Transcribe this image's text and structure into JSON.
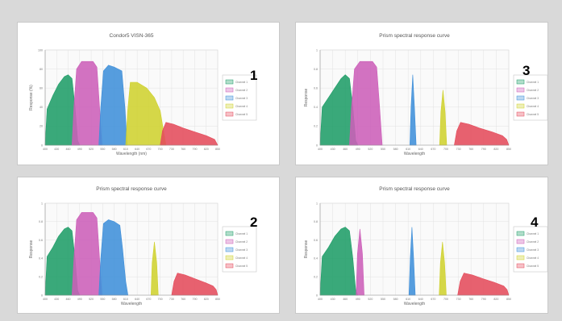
{
  "chart_data": [
    {
      "type": "area",
      "badge": "1",
      "title": "Condor5 VISN-365",
      "ylabel": "Response (%)",
      "xlabel": "Wavelength (nm)",
      "xlim": [
        400,
        850
      ],
      "ylim": [
        0,
        100
      ],
      "x_ticks": [
        400,
        430,
        460,
        490,
        520,
        550,
        580,
        610,
        640,
        670,
        700,
        730,
        760,
        790,
        820,
        850
      ],
      "y_ticks": [
        0,
        20,
        40,
        60,
        80,
        100
      ],
      "legend": [
        "Channel 1",
        "Channel 2",
        "Channel 3",
        "Channel 4",
        "Channel 5"
      ],
      "series": [
        {
          "name": "Channel 1",
          "color": "#1f9d68",
          "points": [
            [
              400,
              0
            ],
            [
              405,
              38
            ],
            [
              420,
              52
            ],
            [
              435,
              64
            ],
            [
              450,
              72
            ],
            [
              460,
              74
            ],
            [
              470,
              70
            ],
            [
              478,
              40
            ],
            [
              485,
              5
            ],
            [
              490,
              0
            ]
          ]
        },
        {
          "name": "Channel 2",
          "color": "#cc5fb8",
          "points": [
            [
              470,
              0
            ],
            [
              475,
              40
            ],
            [
              482,
              80
            ],
            [
              495,
              88
            ],
            [
              510,
              88
            ],
            [
              525,
              88
            ],
            [
              535,
              82
            ],
            [
              542,
              40
            ],
            [
              548,
              0
            ]
          ]
        },
        {
          "name": "Channel 3",
          "color": "#3f8fd9",
          "points": [
            [
              540,
              0
            ],
            [
              545,
              40
            ],
            [
              552,
              78
            ],
            [
              565,
              84
            ],
            [
              580,
              82
            ],
            [
              600,
              78
            ],
            [
              608,
              40
            ],
            [
              614,
              0
            ]
          ]
        },
        {
          "name": "Channel 4",
          "color": "#cfd12f",
          "points": [
            [
              610,
              0
            ],
            [
              615,
              35
            ],
            [
              622,
              66
            ],
            [
              640,
              66
            ],
            [
              665,
              60
            ],
            [
              685,
              50
            ],
            [
              700,
              36
            ],
            [
              710,
              12
            ],
            [
              715,
              0
            ]
          ]
        },
        {
          "name": "Channel 5",
          "color": "#e44b5b",
          "points": [
            [
              700,
              0
            ],
            [
              706,
              15
            ],
            [
              715,
              24
            ],
            [
              735,
              22
            ],
            [
              760,
              18
            ],
            [
              790,
              14
            ],
            [
              820,
              10
            ],
            [
              842,
              6
            ],
            [
              850,
              0
            ]
          ]
        }
      ]
    },
    {
      "type": "area",
      "badge": "3",
      "title": "Prism spectral response curve",
      "ylabel": "Response",
      "xlabel": "Wavelength",
      "xlim": [
        400,
        850
      ],
      "ylim": [
        0,
        1
      ],
      "x_ticks": [
        400,
        430,
        460,
        490,
        520,
        550,
        580,
        610,
        640,
        670,
        700,
        730,
        760,
        790,
        820,
        850
      ],
      "y_ticks": [
        0,
        0.2,
        0.4,
        0.6,
        0.8,
        1
      ],
      "legend": [
        "Channel 1",
        "Channel 2",
        "Channel 3",
        "Channel 4",
        "Channel 5"
      ],
      "series": [
        {
          "name": "Channel 1",
          "color": "#1f9d68",
          "points": [
            [
              400,
              0
            ],
            [
              405,
              0.4
            ],
            [
              420,
              0.5
            ],
            [
              435,
              0.6
            ],
            [
              450,
              0.7
            ],
            [
              460,
              0.74
            ],
            [
              470,
              0.7
            ],
            [
              478,
              0.4
            ],
            [
              485,
              0.05
            ],
            [
              490,
              0
            ]
          ]
        },
        {
          "name": "Channel 2",
          "color": "#cc5fb8",
          "points": [
            [
              470,
              0
            ],
            [
              475,
              0.4
            ],
            [
              482,
              0.8
            ],
            [
              495,
              0.88
            ],
            [
              510,
              0.88
            ],
            [
              525,
              0.88
            ],
            [
              535,
              0.82
            ],
            [
              542,
              0.4
            ],
            [
              548,
              0
            ]
          ]
        },
        {
          "name": "Channel 3",
          "color": "#3f8fd9",
          "points": [
            [
              614,
              0
            ],
            [
              617,
              0.4
            ],
            [
              621,
              0.74
            ],
            [
              625,
              0.4
            ],
            [
              629,
              0
            ]
          ]
        },
        {
          "name": "Channel 4",
          "color": "#cfd12f",
          "points": [
            [
              685,
              0
            ],
            [
              688,
              0.35
            ],
            [
              693,
              0.58
            ],
            [
              698,
              0.35
            ],
            [
              702,
              0
            ]
          ]
        },
        {
          "name": "Channel 5",
          "color": "#e44b5b",
          "points": [
            [
              720,
              0
            ],
            [
              726,
              0.15
            ],
            [
              735,
              0.24
            ],
            [
              755,
              0.22
            ],
            [
              780,
              0.18
            ],
            [
              810,
              0.14
            ],
            [
              835,
              0.1
            ],
            [
              845,
              0.06
            ],
            [
              850,
              0
            ]
          ]
        }
      ]
    },
    {
      "type": "area",
      "badge": "2",
      "title": "Prism spectral response curve",
      "ylabel": "Response",
      "xlabel": "Wavelength",
      "xlim": [
        400,
        850
      ],
      "ylim": [
        0,
        1
      ],
      "x_ticks": [
        400,
        430,
        460,
        490,
        520,
        550,
        580,
        610,
        640,
        670,
        700,
        730,
        760,
        790,
        820,
        850
      ],
      "y_ticks": [
        0,
        0.2,
        0.4,
        0.6,
        0.8,
        1
      ],
      "legend": [
        "Channel 1",
        "Channel 2",
        "Channel 3",
        "Channel 4",
        "Channel 5"
      ],
      "series": [
        {
          "name": "Channel 1",
          "color": "#1f9d68",
          "points": [
            [
              400,
              0
            ],
            [
              405,
              0.42
            ],
            [
              420,
              0.52
            ],
            [
              435,
              0.64
            ],
            [
              450,
              0.72
            ],
            [
              460,
              0.74
            ],
            [
              470,
              0.7
            ],
            [
              478,
              0.4
            ],
            [
              485,
              0.05
            ],
            [
              490,
              0
            ]
          ]
        },
        {
          "name": "Channel 2",
          "color": "#cc5fb8",
          "points": [
            [
              470,
              0
            ],
            [
              475,
              0.4
            ],
            [
              482,
              0.82
            ],
            [
              495,
              0.9
            ],
            [
              510,
              0.9
            ],
            [
              525,
              0.9
            ],
            [
              535,
              0.84
            ],
            [
              542,
              0.4
            ],
            [
              548,
              0
            ]
          ]
        },
        {
          "name": "Channel 3",
          "color": "#3f8fd9",
          "points": [
            [
              540,
              0
            ],
            [
              545,
              0.4
            ],
            [
              552,
              0.78
            ],
            [
              565,
              0.82
            ],
            [
              580,
              0.8
            ],
            [
              595,
              0.76
            ],
            [
              602,
              0.5
            ],
            [
              610,
              0.15
            ],
            [
              616,
              0
            ]
          ]
        },
        {
          "name": "Channel 4",
          "color": "#cfd12f",
          "points": [
            [
              676,
              0
            ],
            [
              679,
              0.35
            ],
            [
              685,
              0.58
            ],
            [
              691,
              0.35
            ],
            [
              695,
              0
            ]
          ]
        },
        {
          "name": "Channel 5",
          "color": "#e44b5b",
          "points": [
            [
              730,
              0
            ],
            [
              736,
              0.15
            ],
            [
              745,
              0.24
            ],
            [
              765,
              0.22
            ],
            [
              790,
              0.18
            ],
            [
              815,
              0.14
            ],
            [
              838,
              0.1
            ],
            [
              846,
              0.06
            ],
            [
              850,
              0
            ]
          ]
        }
      ]
    },
    {
      "type": "area",
      "badge": "4",
      "title": "Prism spectral response curve",
      "ylabel": "Response",
      "xlabel": "Wavelength",
      "xlim": [
        400,
        850
      ],
      "ylim": [
        0,
        1
      ],
      "x_ticks": [
        400,
        430,
        460,
        490,
        520,
        550,
        580,
        610,
        640,
        670,
        700,
        730,
        760,
        790,
        820,
        850
      ],
      "y_ticks": [
        0,
        0.2,
        0.4,
        0.6,
        0.8,
        1
      ],
      "legend": [
        "Channel 1",
        "Channel 2",
        "Channel 3",
        "Channel 4",
        "Channel 5"
      ],
      "series": [
        {
          "name": "Channel 1",
          "color": "#1f9d68",
          "points": [
            [
              400,
              0
            ],
            [
              405,
              0.42
            ],
            [
              420,
              0.52
            ],
            [
              435,
              0.64
            ],
            [
              450,
              0.72
            ],
            [
              460,
              0.74
            ],
            [
              470,
              0.7
            ],
            [
              478,
              0.4
            ],
            [
              485,
              0.05
            ],
            [
              490,
              0
            ]
          ]
        },
        {
          "name": "Channel 2",
          "color": "#cc5fb8",
          "points": [
            [
              486,
              0
            ],
            [
              489,
              0.45
            ],
            [
              495,
              0.72
            ],
            [
              501,
              0.45
            ],
            [
              505,
              0
            ]
          ]
        },
        {
          "name": "Channel 3",
          "color": "#3f8fd9",
          "points": [
            [
              612,
              0
            ],
            [
              615,
              0.4
            ],
            [
              619,
              0.74
            ],
            [
              623,
              0.4
            ],
            [
              627,
              0
            ]
          ]
        },
        {
          "name": "Channel 4",
          "color": "#cfd12f",
          "points": [
            [
              684,
              0
            ],
            [
              687,
              0.35
            ],
            [
              692,
              0.58
            ],
            [
              697,
              0.35
            ],
            [
              701,
              0
            ]
          ]
        },
        {
          "name": "Channel 5",
          "color": "#e44b5b",
          "points": [
            [
              728,
              0
            ],
            [
              734,
              0.15
            ],
            [
              743,
              0.24
            ],
            [
              763,
              0.22
            ],
            [
              788,
              0.18
            ],
            [
              815,
              0.14
            ],
            [
              838,
              0.1
            ],
            [
              846,
              0.06
            ],
            [
              850,
              0
            ]
          ]
        }
      ]
    }
  ]
}
